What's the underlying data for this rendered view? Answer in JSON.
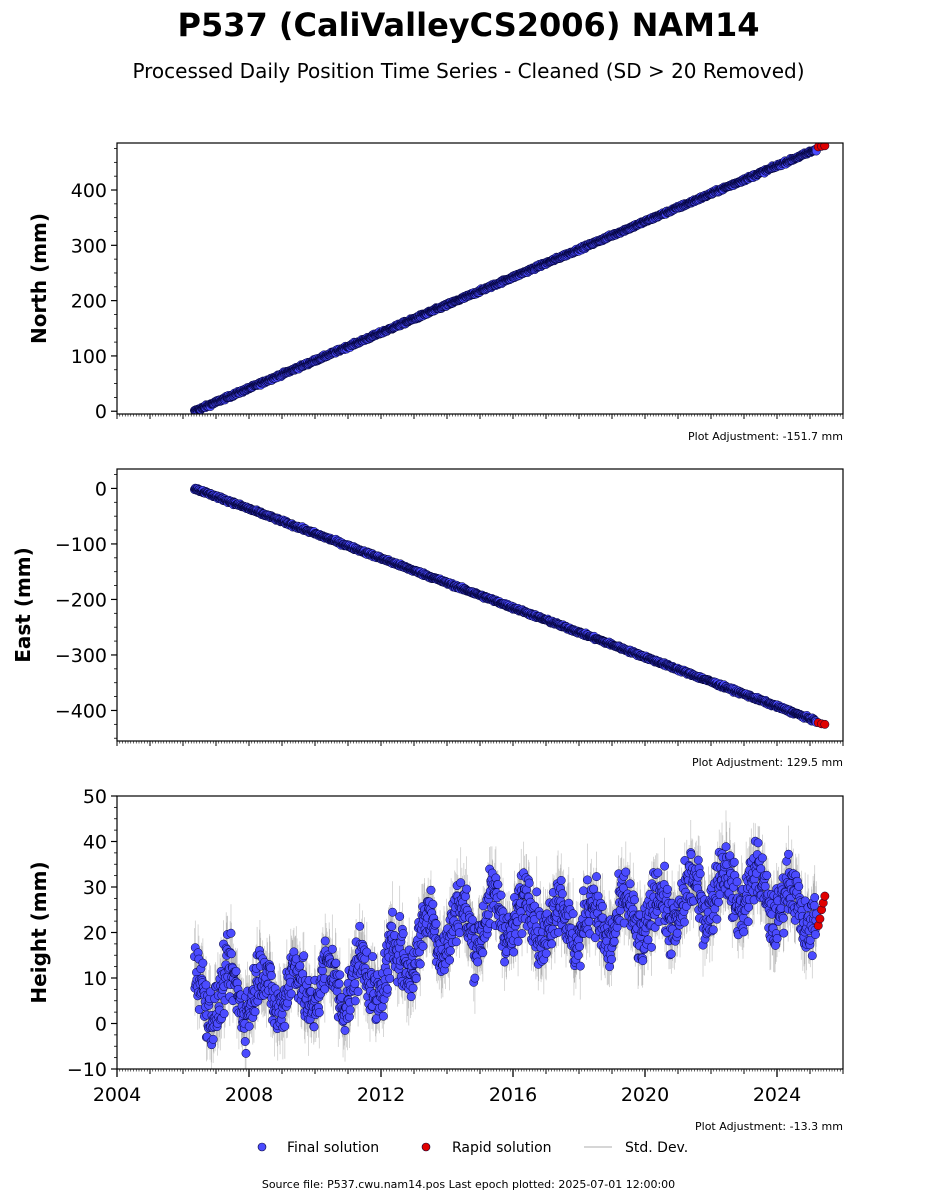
{
  "header": {
    "title": "P537 (CaliValleyCS2006) NAM14",
    "subtitle": "Processed Daily Position Time Series - Cleaned (SD > 20 Removed)"
  },
  "footer": {
    "source": "Source file: P537.cwu.nam14.pos  Last epoch plotted: 2025-07-01 12:00:00"
  },
  "legend": {
    "final": "Final solution",
    "rapid": "Rapid solution",
    "std": "Std. Dev."
  },
  "colors": {
    "final": "#4b4bff",
    "rapid": "#e00000",
    "std": "#a8a8a8",
    "edge": "#000033"
  },
  "chart_data": [
    {
      "type": "scatter",
      "ylabel": "North (mm)",
      "adjustment": "Plot Adjustment: -151.7 mm",
      "xlim": [
        2004.0,
        2026.0
      ],
      "ylim": [
        -5,
        485
      ],
      "yticks": [
        0,
        100,
        200,
        300,
        400
      ],
      "ytick_labels": [
        "0",
        "100",
        "200",
        "300",
        "400"
      ],
      "trend": {
        "start": [
          2006.35,
          0
        ],
        "end": [
          2025.45,
          480
        ]
      },
      "series": [
        {
          "name": "Final solution",
          "x": [
            2006.35,
            2008,
            2010,
            2012,
            2013.0,
            2014,
            2016,
            2018,
            2020,
            2022,
            2024,
            2025.2
          ],
          "y": [
            0,
            45,
            95,
            148,
            170,
            205,
            252,
            300,
            352,
            400,
            452,
            477
          ]
        },
        {
          "name": "Rapid solution",
          "x": [
            2025.25,
            2025.35,
            2025.45
          ],
          "y": [
            478,
            479,
            480
          ]
        }
      ]
    },
    {
      "type": "scatter",
      "ylabel": "East (mm)",
      "adjustment": "Plot Adjustment: 129.5 mm",
      "xlim": [
        2004.0,
        2026.0
      ],
      "ylim": [
        -455,
        35
      ],
      "yticks": [
        0,
        -100,
        -200,
        -300,
        -400
      ],
      "ytick_labels": [
        "0",
        "−100",
        "−200",
        "−300",
        "−400"
      ],
      "trend": {
        "start": [
          2006.35,
          0
        ],
        "end": [
          2025.45,
          -425
        ]
      },
      "series": [
        {
          "name": "Final solution",
          "x": [
            2006.35,
            2008,
            2010,
            2012,
            2014,
            2016,
            2018,
            2019.3,
            2020,
            2022,
            2024,
            2025.2
          ],
          "y": [
            0,
            -35,
            -82,
            -130,
            -170,
            -215,
            -262,
            -292,
            -305,
            -345,
            -395,
            -420
          ]
        },
        {
          "name": "Rapid solution",
          "x": [
            2025.25,
            2025.35,
            2025.45
          ],
          "y": [
            -422,
            -424,
            -425
          ]
        }
      ]
    },
    {
      "type": "scatter",
      "ylabel": "Height (mm)",
      "adjustment": "Plot Adjustment: -13.3 mm",
      "xlim": [
        2004.0,
        2026.0
      ],
      "ylim": [
        -10,
        50
      ],
      "yticks": [
        -10,
        0,
        10,
        20,
        30,
        40,
        50
      ],
      "ytick_labels": [
        "−10",
        "0",
        "10",
        "20",
        "30",
        "40",
        "50"
      ],
      "xticks": [
        2004,
        2008,
        2012,
        2016,
        2020,
        2024
      ],
      "xtick_labels": [
        "2004",
        "2008",
        "2012",
        "2016",
        "2020",
        "2024"
      ],
      "trend": {
        "x": [
          2006.35,
          2008,
          2010,
          2012,
          2013.5,
          2016,
          2018,
          2020,
          2022,
          2023,
          2024,
          2025.3
        ],
        "y": [
          6,
          7,
          8,
          10,
          20,
          24,
          22,
          23,
          29,
          30,
          27,
          24
        ]
      },
      "series": [
        {
          "name": "Final solution",
          "x": [
            2006.35,
            2008,
            2010,
            2012,
            2014,
            2016,
            2018,
            2020,
            2022,
            2024,
            2025.2
          ],
          "y": [
            6,
            7,
            8,
            10,
            22,
            24,
            22,
            23,
            29,
            27,
            24
          ]
        },
        {
          "name": "Rapid solution",
          "x": [
            2025.25,
            2025.3,
            2025.35,
            2025.4,
            2025.45
          ],
          "y": [
            21.5,
            23,
            25,
            26.5,
            28
          ]
        }
      ]
    }
  ]
}
